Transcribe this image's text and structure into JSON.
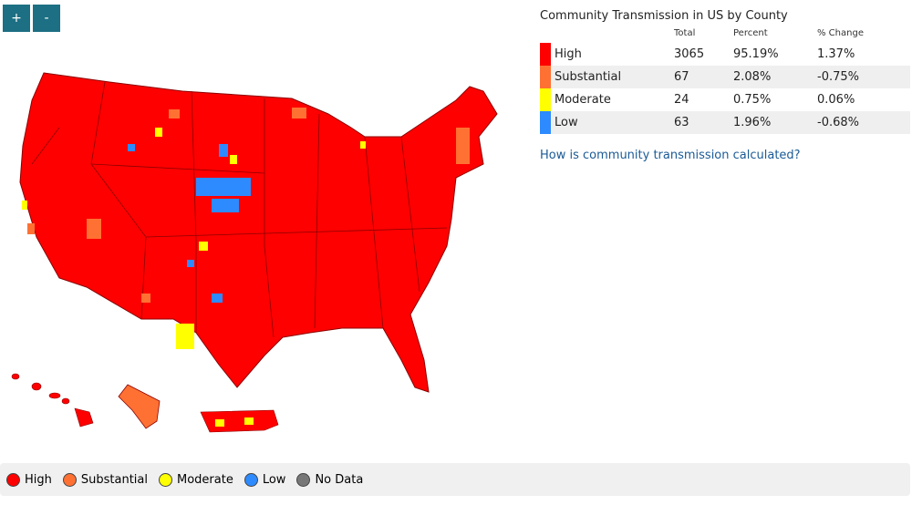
{
  "zoom_controls": {
    "zoom_in": "+",
    "zoom_out": "-"
  },
  "panel": {
    "title": "Community Transmission in US by County",
    "columns": [
      "Total",
      "Percent",
      "% Change"
    ],
    "rows": [
      {
        "level": "High",
        "color": "#ff0000",
        "total": 3065,
        "percent": "95.19%",
        "change": "1.37%"
      },
      {
        "level": "Substantial",
        "color": "#ff7133",
        "total": 67,
        "percent": "2.08%",
        "change": "-0.75%"
      },
      {
        "level": "Moderate",
        "color": "#ffff00",
        "total": 24,
        "percent": "0.75%",
        "change": "0.06%"
      },
      {
        "level": "Low",
        "color": "#2d8bff",
        "total": 63,
        "percent": "1.96%",
        "change": "-0.68%"
      }
    ],
    "link": "How is community transmission calculated?"
  },
  "legend": [
    {
      "label": "High",
      "color": "#ff0000"
    },
    {
      "label": "Substantial",
      "color": "#ff7133"
    },
    {
      "label": "Moderate",
      "color": "#ffff00"
    },
    {
      "label": "Low",
      "color": "#2d8bff"
    },
    {
      "label": "No Data",
      "color": "#777777"
    }
  ]
}
